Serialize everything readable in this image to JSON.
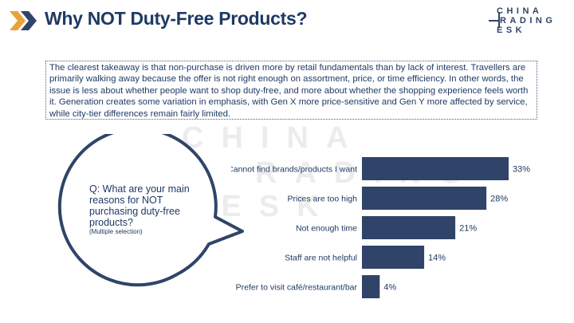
{
  "header": {
    "title": "Why NOT Duty-Free Products?",
    "accent_color": "#e8a23a",
    "title_color": "#1f3a63"
  },
  "logo": {
    "line1": "CHINA",
    "line2": "RADING",
    "line3": "ESK"
  },
  "summary": {
    "text": "The clearest takeaway is that non-purchase is driven more by retail fundamentals than by lack of interest. Travellers are primarily walking away because the offer is not right enough on assortment, price, or time efficiency. In other words, the issue is less about whether people want to shop duty-free, and more about whether the shopping experience feels worth it. Generation creates some variation in emphasis, with Gen X more price-sensitive and Gen Y more affected by service, while city-tier differences remain fairly limited."
  },
  "watermark": {
    "line1": "CHINA",
    "line2": "RADING",
    "line3": "DESK"
  },
  "question": {
    "text": "Q: What are your main reasons for NOT purchasing duty-free products?",
    "note": "(Multiple selection)"
  },
  "chart_data": {
    "type": "bar",
    "orientation": "horizontal",
    "categories": [
      "Cannot find brands/products I want",
      "Prices are too high",
      "Not enough time",
      "Staff are not helpful",
      "Prefer to visit café/restaurant/bar"
    ],
    "values": [
      33,
      28,
      21,
      14,
      4
    ],
    "value_suffix": "%",
    "bar_color": "#2f4468",
    "xlim": [
      0,
      33
    ]
  }
}
